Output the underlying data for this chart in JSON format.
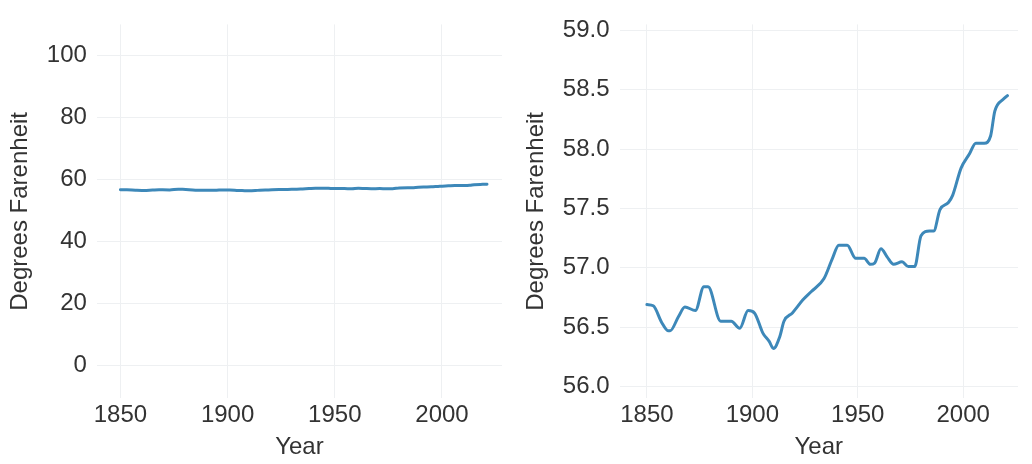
{
  "chart_data": [
    {
      "type": "line",
      "xlabel": "Year",
      "ylabel": "Degrees Farenheit",
      "xlim": [
        1839,
        2028
      ],
      "ylim": [
        -10.6,
        110
      ],
      "xticks": [
        1850,
        1900,
        1950,
        2000
      ],
      "yticks": [
        0,
        20,
        40,
        60,
        80,
        100
      ],
      "grid": true,
      "legend": false,
      "marker": "none",
      "line_style": "solid",
      "series": [
        {
          "color": "#3d88b9",
          "x": [
            1850,
            1853,
            1857,
            1860,
            1861,
            1865,
            1868,
            1873,
            1877,
            1879,
            1885,
            1890,
            1894,
            1898,
            1901,
            1905,
            1908,
            1910,
            1913,
            1915,
            1919,
            1924,
            1928,
            1934,
            1938,
            1941,
            1945,
            1949,
            1953,
            1956,
            1958,
            1961,
            1964,
            1967,
            1971,
            1974,
            1977,
            1980,
            1984,
            1986,
            1989,
            1993,
            1995,
            1999,
            2003,
            2006,
            2010,
            2013,
            2015,
            2019,
            2021
          ],
          "values": [
            56.69,
            56.68,
            56.54,
            56.47,
            56.47,
            56.59,
            56.67,
            56.64,
            56.84,
            56.84,
            56.55,
            56.55,
            56.49,
            56.64,
            56.62,
            56.45,
            56.38,
            56.32,
            56.42,
            56.55,
            56.62,
            56.73,
            56.8,
            56.91,
            57.08,
            57.19,
            57.19,
            57.08,
            57.08,
            57.03,
            57.04,
            57.16,
            57.09,
            57.03,
            57.05,
            57.01,
            57.01,
            57.27,
            57.31,
            57.31,
            57.49,
            57.55,
            57.61,
            57.84,
            57.96,
            58.05,
            58.05,
            58.11,
            58.32,
            58.42,
            58.45
          ]
        }
      ]
    },
    {
      "type": "line",
      "xlabel": "Year",
      "ylabel": "Degrees Farenheit",
      "xlim": [
        1837,
        2026
      ],
      "ylim": [
        55.9,
        59.05
      ],
      "xticks": [
        1850,
        1900,
        1950,
        2000
      ],
      "yticks": [
        {
          "value": 56,
          "label": "56.0"
        },
        56.5,
        {
          "value": 57,
          "label": "57.0"
        },
        57.5,
        {
          "value": 58,
          "label": "58.0"
        },
        58.5,
        {
          "value": 59,
          "label": "59.0"
        }
      ],
      "grid": true,
      "legend": false,
      "marker": "none",
      "line_style": "solid",
      "series": [
        {
          "color": "#3d88b9",
          "x": [
            1850,
            1853,
            1857,
            1860,
            1861,
            1865,
            1868,
            1873,
            1877,
            1879,
            1885,
            1890,
            1894,
            1898,
            1901,
            1905,
            1908,
            1910,
            1913,
            1915,
            1919,
            1924,
            1928,
            1934,
            1938,
            1941,
            1945,
            1949,
            1953,
            1956,
            1958,
            1961,
            1964,
            1967,
            1971,
            1974,
            1977,
            1980,
            1984,
            1986,
            1989,
            1993,
            1995,
            1999,
            2003,
            2006,
            2010,
            2013,
            2015,
            2019,
            2021
          ],
          "values": [
            56.69,
            56.68,
            56.54,
            56.47,
            56.47,
            56.59,
            56.67,
            56.64,
            56.84,
            56.84,
            56.55,
            56.55,
            56.49,
            56.64,
            56.62,
            56.45,
            56.38,
            56.32,
            56.42,
            56.55,
            56.62,
            56.73,
            56.8,
            56.91,
            57.08,
            57.19,
            57.19,
            57.08,
            57.08,
            57.03,
            57.04,
            57.16,
            57.09,
            57.03,
            57.05,
            57.01,
            57.01,
            57.27,
            57.31,
            57.31,
            57.49,
            57.55,
            57.61,
            57.84,
            57.96,
            58.05,
            58.05,
            58.11,
            58.32,
            58.42,
            58.45
          ]
        }
      ]
    }
  ]
}
